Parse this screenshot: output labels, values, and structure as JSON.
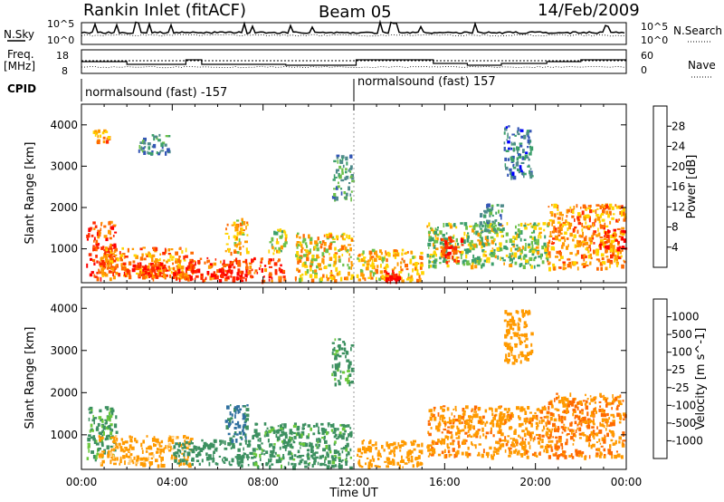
{
  "header": {
    "station": "Rankin Inlet (fitACF)",
    "beam": "Beam 05",
    "date": "14/Feb/2009"
  },
  "noise_panel": {
    "left_label": "N.Sky",
    "right_label": "N.Search",
    "left_ticks": [
      "10^5",
      "10^0"
    ],
    "right_ticks": [
      "10^5",
      "10^0"
    ]
  },
  "freq_panel": {
    "left_label_line1": "Freq.",
    "left_label_line2": "[MHz]",
    "right_label": "Nave",
    "left_ticks": [
      "18",
      "8"
    ],
    "right_ticks": [
      "60",
      "0"
    ]
  },
  "cpid_panel": {
    "label": "CPID",
    "segments": [
      {
        "text": "normalsound (fast) -157",
        "start_hour": 0,
        "end_hour": 12
      },
      {
        "text": "normalsound (fast) 157",
        "start_hour": 12,
        "end_hour": 24
      }
    ]
  },
  "chart_data": [
    {
      "type": "heatmap",
      "title": "",
      "xlabel": "",
      "ylabel": "Slant Range [km]",
      "x_ticks": [
        "00:00",
        "04:00",
        "08:00",
        "12:00",
        "16:00",
        "20:00",
        "00:00"
      ],
      "xlim_hours": [
        0,
        24
      ],
      "ylim_km": [
        180,
        4500
      ],
      "y_ticks": [
        1000,
        2000,
        3000,
        4000
      ],
      "colorbar": {
        "label": "Power [dB]",
        "ticks": [
          "28",
          "24",
          "20",
          "16",
          "12",
          "8",
          "4"
        ],
        "range": [
          0,
          30
        ],
        "colors": [
          "#0000ff",
          "#3456b5",
          "#4f8b8b",
          "#3c9f6b",
          "#6cc04a",
          "#ffd400",
          "#ff9a00",
          "#ff6a00",
          "#ff2a00",
          "#ff0000"
        ]
      },
      "echo_regions": [
        {
          "t0": 0.2,
          "t1": 1.5,
          "r0": 300,
          "r1": 1700,
          "value": 24
        },
        {
          "t0": 0.7,
          "t1": 4.8,
          "r0": 350,
          "r1": 1050,
          "value": 21
        },
        {
          "t0": 1.8,
          "t1": 3.8,
          "r0": 350,
          "r1": 700,
          "value": 27
        },
        {
          "t0": 2.4,
          "t1": 4.9,
          "r0": 300,
          "r1": 600,
          "value": 22
        },
        {
          "t0": 6.3,
          "t1": 7.3,
          "r0": 900,
          "r1": 1750,
          "value": 18
        },
        {
          "t0": 4.0,
          "t1": 8.9,
          "r0": 250,
          "r1": 800,
          "value": 25
        },
        {
          "t0": 5.8,
          "t1": 7.2,
          "r0": 250,
          "r1": 520,
          "value": 29
        },
        {
          "t0": 8.2,
          "t1": 9.0,
          "r0": 900,
          "r1": 1500,
          "value": 15
        },
        {
          "t0": 9.4,
          "t1": 11.9,
          "r0": 250,
          "r1": 1400,
          "value": 18
        },
        {
          "t0": 11.0,
          "t1": 11.9,
          "r0": 2200,
          "r1": 3300,
          "value": 10
        },
        {
          "t0": 12.1,
          "t1": 15.0,
          "r0": 250,
          "r1": 1000,
          "value": 19
        },
        {
          "t0": 13.3,
          "t1": 14.0,
          "r0": 250,
          "r1": 500,
          "value": 29
        },
        {
          "t0": 15.2,
          "t1": 20.5,
          "r0": 600,
          "r1": 1650,
          "value": 14
        },
        {
          "t0": 15.8,
          "t1": 16.8,
          "r0": 700,
          "r1": 1300,
          "value": 25
        },
        {
          "t0": 17.5,
          "t1": 18.6,
          "r0": 1400,
          "r1": 2100,
          "value": 9
        },
        {
          "t0": 18.6,
          "t1": 19.8,
          "r0": 2700,
          "r1": 4000,
          "value": 7
        },
        {
          "t0": 20.5,
          "t1": 23.9,
          "r0": 550,
          "r1": 2100,
          "value": 20
        },
        {
          "t0": 22.8,
          "t1": 23.9,
          "r0": 1000,
          "r1": 1500,
          "value": 28
        },
        {
          "t0": 2.5,
          "t1": 3.8,
          "r0": 3300,
          "r1": 3800,
          "value": 9
        },
        {
          "t0": 0.5,
          "t1": 1.2,
          "r0": 3600,
          "r1": 3900,
          "value": 20
        }
      ]
    },
    {
      "type": "heatmap",
      "title": "",
      "xlabel": "Time UT",
      "ylabel": "Slant Range [km]",
      "x_ticks": [
        "00:00",
        "04:00",
        "08:00",
        "12:00",
        "16:00",
        "20:00",
        "00:00"
      ],
      "xlim_hours": [
        0,
        24
      ],
      "ylim_km": [
        180,
        4500
      ],
      "y_ticks": [
        1000,
        2000,
        3000,
        4000
      ],
      "colorbar": {
        "label": "Velocity [m s^-1]",
        "ticks": [
          "1000",
          "500",
          "100",
          "25",
          "-25",
          "-100",
          "-500",
          "-1000"
        ],
        "colors": [
          "#2050c0",
          "#3070a0",
          "#3c9060",
          "#6ac83c",
          "#c8c8c8",
          "#ffd080",
          "#ff9a00",
          "#ff6a00",
          "#ff0000"
        ]
      },
      "echo_regions": [
        {
          "t0": 0.2,
          "t1": 1.5,
          "r0": 400,
          "r1": 1700,
          "value": 120
        },
        {
          "t0": 0.7,
          "t1": 4.8,
          "r0": 300,
          "r1": 1000,
          "value": -150
        },
        {
          "t0": 4.0,
          "t1": 7.5,
          "r0": 300,
          "r1": 900,
          "value": 200
        },
        {
          "t0": 6.3,
          "t1": 7.3,
          "r0": 900,
          "r1": 1750,
          "value": 600
        },
        {
          "t0": 7.5,
          "t1": 11.9,
          "r0": 250,
          "r1": 1300,
          "value": 150
        },
        {
          "t0": 12.1,
          "t1": 15.0,
          "r0": 250,
          "r1": 900,
          "value": -300
        },
        {
          "t0": 15.2,
          "t1": 20.5,
          "r0": 500,
          "r1": 1700,
          "value": -400
        },
        {
          "t0": 18.6,
          "t1": 19.8,
          "r0": 2700,
          "r1": 4000,
          "value": -200
        },
        {
          "t0": 20.5,
          "t1": 23.9,
          "r0": 500,
          "r1": 2000,
          "value": -500
        },
        {
          "t0": 11.0,
          "t1": 11.9,
          "r0": 2200,
          "r1": 3300,
          "value": 150
        }
      ]
    }
  ]
}
